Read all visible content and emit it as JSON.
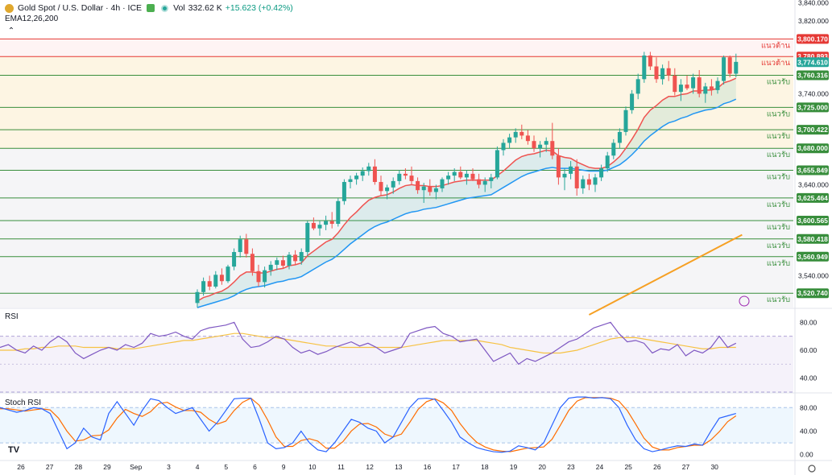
{
  "header": {
    "title": "Gold Spot / U.S. Dollar · 4h · ICE",
    "vol_label": "Vol",
    "vol_value": "332.62 K",
    "change": "+15.623 (+0.42%)",
    "ema_label": "EMA12,26,200",
    "collapse_icon": "chevron-up-icon"
  },
  "colors": {
    "up": "#26a69a",
    "down": "#ef5350",
    "ema12": "#ef5350",
    "ema26": "#2196f3",
    "ema200": "#f6a023",
    "resistance": "#e53935",
    "support": "#388e3c",
    "rsi": "#7e57c2",
    "rsi_ma": "#f6c243",
    "stoch_k": "#2962ff",
    "stoch_d": "#ff6d00"
  },
  "chart_data": [
    {
      "type": "candlestick",
      "pane": "price",
      "ylim": [
        3505,
        3843
      ],
      "y_ticks": [
        "3,840.000",
        "3,820.000",
        "3,740.000",
        "3,640.000",
        "3,540.000"
      ],
      "levels": [
        {
          "value": 3800.17,
          "label": "3,800.170",
          "text": "แนวต้าน",
          "kind": "resistance"
        },
        {
          "value": 3780.893,
          "label": "3,780.893",
          "text": "แนวต้าน",
          "kind": "resistance"
        },
        {
          "value": 3760.316,
          "label": "3,760.316",
          "text": "แนวรับ",
          "kind": "support"
        },
        {
          "value": 3725.0,
          "label": "3,725.000",
          "text": "แนวรับ",
          "kind": "support"
        },
        {
          "value": 3700.422,
          "label": "3,700.422",
          "text": "แนวรับ",
          "kind": "support"
        },
        {
          "value": 3680.0,
          "label": "3,680.000",
          "text": "แนวรับ",
          "kind": "support"
        },
        {
          "value": 3655.849,
          "label": "3,655.849",
          "text": "แนวรับ",
          "kind": "support"
        },
        {
          "value": 3625.464,
          "label": "3,625.464",
          "text": "แนวรับ",
          "kind": "support"
        },
        {
          "value": 3600.565,
          "label": "3,600.565",
          "text": "แนวรับ",
          "kind": "support"
        },
        {
          "value": 3580.418,
          "label": "3,580.418",
          "text": "แนวรับ",
          "kind": "support"
        },
        {
          "value": 3560.949,
          "label": "3,560.949",
          "text": "แนวรับ",
          "kind": "support"
        },
        {
          "value": 3520.74,
          "label": "3,520.740",
          "text": "แนวรับ",
          "kind": "support"
        }
      ],
      "last_price": {
        "value": 3774.61,
        "label": "3,774.610"
      },
      "ohlc": [
        [
          3510,
          3525,
          3505,
          3522
        ],
        [
          3522,
          3538,
          3518,
          3534
        ],
        [
          3534,
          3540,
          3524,
          3528
        ],
        [
          3528,
          3545,
          3526,
          3541
        ],
        [
          3541,
          3548,
          3530,
          3534
        ],
        [
          3534,
          3552,
          3532,
          3550
        ],
        [
          3550,
          3570,
          3546,
          3566
        ],
        [
          3566,
          3584,
          3560,
          3580
        ],
        [
          3580,
          3586,
          3560,
          3564
        ],
        [
          3564,
          3570,
          3540,
          3545
        ],
        [
          3545,
          3552,
          3528,
          3533
        ],
        [
          3533,
          3550,
          3527,
          3546
        ],
        [
          3546,
          3556,
          3540,
          3552
        ],
        [
          3552,
          3560,
          3546,
          3557
        ],
        [
          3557,
          3562,
          3548,
          3551
        ],
        [
          3551,
          3566,
          3547,
          3563
        ],
        [
          3563,
          3568,
          3552,
          3556
        ],
        [
          3556,
          3570,
          3552,
          3566
        ],
        [
          3566,
          3600,
          3562,
          3598
        ],
        [
          3598,
          3604,
          3590,
          3592
        ],
        [
          3592,
          3600,
          3584,
          3596
        ],
        [
          3596,
          3606,
          3590,
          3600
        ],
        [
          3600,
          3610,
          3592,
          3597
        ],
        [
          3597,
          3625,
          3594,
          3622
        ],
        [
          3622,
          3646,
          3618,
          3643
        ],
        [
          3643,
          3650,
          3636,
          3646
        ],
        [
          3646,
          3653,
          3640,
          3650
        ],
        [
          3650,
          3659,
          3644,
          3655
        ],
        [
          3655,
          3664,
          3650,
          3660
        ],
        [
          3660,
          3668,
          3640,
          3643
        ],
        [
          3643,
          3650,
          3628,
          3633
        ],
        [
          3633,
          3640,
          3624,
          3637
        ],
        [
          3637,
          3648,
          3630,
          3644
        ],
        [
          3644,
          3656,
          3640,
          3652
        ],
        [
          3652,
          3658,
          3646,
          3650
        ],
        [
          3650,
          3660,
          3640,
          3644
        ],
        [
          3644,
          3648,
          3630,
          3634
        ],
        [
          3634,
          3642,
          3620,
          3638
        ],
        [
          3638,
          3646,
          3628,
          3632
        ],
        [
          3632,
          3640,
          3624,
          3636
        ],
        [
          3636,
          3648,
          3632,
          3646
        ],
        [
          3646,
          3654,
          3640,
          3650
        ],
        [
          3650,
          3658,
          3644,
          3654
        ],
        [
          3654,
          3660,
          3646,
          3648
        ],
        [
          3648,
          3656,
          3640,
          3652
        ],
        [
          3652,
          3658,
          3644,
          3646
        ],
        [
          3646,
          3652,
          3636,
          3640
        ],
        [
          3640,
          3648,
          3632,
          3644
        ],
        [
          3644,
          3652,
          3636,
          3648
        ],
        [
          3648,
          3682,
          3646,
          3678
        ],
        [
          3678,
          3690,
          3672,
          3686
        ],
        [
          3686,
          3696,
          3680,
          3692
        ],
        [
          3692,
          3702,
          3686,
          3698
        ],
        [
          3698,
          3706,
          3690,
          3694
        ],
        [
          3694,
          3700,
          3684,
          3688
        ],
        [
          3688,
          3694,
          3676,
          3680
        ],
        [
          3680,
          3688,
          3670,
          3684
        ],
        [
          3684,
          3692,
          3676,
          3688
        ],
        [
          3688,
          3708,
          3668,
          3672
        ],
        [
          3672,
          3680,
          3640,
          3648
        ],
        [
          3648,
          3658,
          3634,
          3652
        ],
        [
          3652,
          3666,
          3646,
          3660
        ],
        [
          3660,
          3668,
          3628,
          3636
        ],
        [
          3636,
          3650,
          3630,
          3646
        ],
        [
          3646,
          3652,
          3634,
          3640
        ],
        [
          3640,
          3652,
          3632,
          3648
        ],
        [
          3648,
          3662,
          3644,
          3658
        ],
        [
          3658,
          3676,
          3654,
          3672
        ],
        [
          3672,
          3690,
          3668,
          3686
        ],
        [
          3686,
          3702,
          3680,
          3698
        ],
        [
          3698,
          3726,
          3694,
          3722
        ],
        [
          3722,
          3744,
          3718,
          3740
        ],
        [
          3740,
          3762,
          3734,
          3756
        ],
        [
          3756,
          3786,
          3752,
          3782
        ],
        [
          3782,
          3786,
          3766,
          3770
        ],
        [
          3770,
          3780,
          3752,
          3756
        ],
        [
          3756,
          3772,
          3750,
          3768
        ],
        [
          3768,
          3776,
          3754,
          3760
        ],
        [
          3760,
          3768,
          3738,
          3742
        ],
        [
          3742,
          3756,
          3732,
          3750
        ],
        [
          3750,
          3760,
          3744,
          3746
        ],
        [
          3746,
          3762,
          3740,
          3758
        ],
        [
          3758,
          3766,
          3736,
          3740
        ],
        [
          3740,
          3752,
          3730,
          3748
        ],
        [
          3748,
          3756,
          3738,
          3744
        ],
        [
          3744,
          3758,
          3740,
          3754
        ],
        [
          3754,
          3782,
          3750,
          3780
        ],
        [
          3780,
          3782,
          3758,
          3762
        ],
        [
          3762,
          3784,
          3758,
          3775
        ]
      ],
      "ema12": [
        3512,
        3516,
        3518,
        3521,
        3523,
        3527,
        3533,
        3540,
        3544,
        3544,
        3543,
        3543,
        3545,
        3547,
        3548,
        3551,
        3552,
        3554,
        3562,
        3567,
        3572,
        3577,
        3580,
        3587,
        3596,
        3604,
        3610,
        3617,
        3623,
        3626,
        3628,
        3629,
        3632,
        3636,
        3639,
        3640,
        3639,
        3639,
        3638,
        3638,
        3639,
        3641,
        3643,
        3644,
        3645,
        3645,
        3645,
        3645,
        3645,
        3650,
        3655,
        3661,
        3667,
        3671,
        3673,
        3674,
        3676,
        3678,
        3677,
        3672,
        3670,
        3669,
        3665,
        3662,
        3659,
        3658,
        3658,
        3660,
        3665,
        3671,
        3680,
        3690,
        3701,
        3714,
        3722,
        3727,
        3733,
        3737,
        3737,
        3739,
        3740,
        3743,
        3743,
        3744,
        3744,
        3746,
        3752,
        3754,
        3757
      ],
      "ema26": [
        3505,
        3507,
        3509,
        3511,
        3513,
        3515,
        3518,
        3522,
        3525,
        3527,
        3528,
        3529,
        3531,
        3533,
        3534,
        3536,
        3537,
        3539,
        3543,
        3547,
        3551,
        3555,
        3558,
        3563,
        3569,
        3575,
        3580,
        3585,
        3590,
        3594,
        3597,
        3599,
        3602,
        3605,
        3608,
        3610,
        3611,
        3613,
        3614,
        3615,
        3617,
        3619,
        3621,
        3623,
        3625,
        3626,
        3627,
        3628,
        3629,
        3633,
        3637,
        3641,
        3645,
        3649,
        3652,
        3654,
        3656,
        3658,
        3659,
        3658,
        3658,
        3658,
        3657,
        3656,
        3655,
        3655,
        3655,
        3656,
        3659,
        3662,
        3667,
        3673,
        3680,
        3688,
        3694,
        3699,
        3704,
        3708,
        3710,
        3713,
        3715,
        3718,
        3720,
        3722,
        3723,
        3725,
        3729,
        3731,
        3734
      ],
      "ema200_segment": [
        [
          64,
          3497
        ],
        [
          89,
          3585
        ]
      ]
    },
    {
      "type": "line",
      "pane": "rsi",
      "title": "RSI",
      "ylim": [
        30,
        90
      ],
      "y_ticks": [
        "80.00",
        "60.00",
        "40.00"
      ],
      "band": [
        30,
        70
      ],
      "rsi": [
        62,
        64,
        60,
        58,
        63,
        60,
        66,
        70,
        66,
        58,
        54,
        57,
        60,
        62,
        60,
        64,
        62,
        65,
        72,
        70,
        71,
        73,
        70,
        68,
        74,
        76,
        77,
        78,
        80,
        68,
        62,
        63,
        66,
        70,
        68,
        62,
        58,
        60,
        57,
        59,
        62,
        64,
        66,
        63,
        65,
        62,
        58,
        60,
        62,
        72,
        74,
        76,
        77,
        72,
        70,
        66,
        67,
        68,
        60,
        52,
        55,
        58,
        50,
        54,
        52,
        55,
        58,
        62,
        66,
        68,
        72,
        76,
        78,
        80,
        72,
        66,
        67,
        65,
        58,
        61,
        60,
        64,
        56,
        60,
        58,
        62,
        70,
        62,
        65
      ],
      "rsi_ma": [
        60,
        60,
        60,
        61,
        61,
        62,
        62,
        63,
        63,
        63,
        62,
        62,
        62,
        62,
        61,
        61,
        61,
        62,
        63,
        64,
        65,
        66,
        67,
        67,
        68,
        69,
        70,
        71,
        72,
        72,
        71,
        70,
        69,
        69,
        68,
        67,
        66,
        65,
        64,
        63,
        63,
        62,
        62,
        62,
        62,
        62,
        62,
        62,
        62,
        63,
        64,
        65,
        66,
        67,
        67,
        67,
        67,
        67,
        66,
        65,
        64,
        62,
        61,
        60,
        59,
        58,
        58,
        58,
        59,
        60,
        62,
        64,
        66,
        68,
        69,
        69,
        69,
        68,
        67,
        66,
        65,
        64,
        63,
        62,
        61,
        61,
        62,
        62,
        62
      ]
    },
    {
      "type": "line",
      "pane": "stoch",
      "title": "Stoch RSI",
      "ylim": [
        -10,
        105
      ],
      "y_ticks": [
        "80.00",
        "40.00",
        "0.00"
      ],
      "band": [
        20,
        80
      ],
      "k": [
        80,
        76,
        72,
        75,
        80,
        78,
        70,
        40,
        10,
        20,
        45,
        30,
        25,
        70,
        90,
        70,
        50,
        75,
        95,
        92,
        80,
        70,
        75,
        80,
        60,
        40,
        55,
        75,
        95,
        96,
        96,
        60,
        20,
        10,
        12,
        20,
        40,
        20,
        8,
        5,
        20,
        40,
        60,
        55,
        45,
        40,
        20,
        30,
        55,
        80,
        95,
        96,
        94,
        75,
        55,
        30,
        20,
        12,
        8,
        5,
        4,
        6,
        15,
        12,
        8,
        20,
        50,
        80,
        96,
        98,
        98,
        96,
        97,
        95,
        80,
        50,
        25,
        10,
        5,
        8,
        12,
        15,
        14,
        18,
        16,
        40,
        62,
        66,
        70
      ],
      "d": [
        78,
        78,
        76,
        74,
        76,
        78,
        76,
        62,
        40,
        23,
        25,
        32,
        33,
        42,
        62,
        77,
        70,
        65,
        73,
        87,
        89,
        81,
        75,
        75,
        72,
        60,
        52,
        57,
        75,
        89,
        96,
        84,
        59,
        30,
        14,
        14,
        24,
        27,
        23,
        11,
        11,
        22,
        40,
        52,
        53,
        47,
        35,
        30,
        35,
        55,
        77,
        90,
        95,
        88,
        75,
        53,
        35,
        21,
        13,
        8,
        6,
        5,
        8,
        11,
        12,
        13,
        26,
        50,
        75,
        91,
        97,
        97,
        97,
        96,
        91,
        75,
        52,
        28,
        13,
        8,
        8,
        12,
        14,
        16,
        16,
        25,
        39,
        56,
        66
      ]
    }
  ],
  "x_labels": [
    {
      "label": "26",
      "i": 0
    },
    {
      "label": "27",
      "i": 3.5
    },
    {
      "label": "28",
      "i": 7
    },
    {
      "label": "29",
      "i": 10.5
    },
    {
      "label": "Sep",
      "i": 14
    },
    {
      "label": "3",
      "i": 18
    },
    {
      "label": "4",
      "i": 21.5
    },
    {
      "label": "5",
      "i": 25
    },
    {
      "label": "6",
      "i": 28.5
    },
    {
      "label": "9",
      "i": 32
    },
    {
      "label": "10",
      "i": 35.5
    },
    {
      "label": "11",
      "i": 39
    },
    {
      "label": "12",
      "i": 42.5
    },
    {
      "label": "13",
      "i": 46
    },
    {
      "label": "16",
      "i": 49.5
    },
    {
      "label": "17",
      "i": 53
    },
    {
      "label": "18",
      "i": 56.5
    },
    {
      "label": "19",
      "i": 60
    },
    {
      "label": "20",
      "i": 63.5
    },
    {
      "label": "23",
      "i": 67
    },
    {
      "label": "24",
      "i": 70.5
    },
    {
      "label": "25",
      "i": 74
    },
    {
      "label": "26",
      "i": 77.5
    },
    {
      "label": "27",
      "i": 81
    },
    {
      "label": "30",
      "i": 84.5
    }
  ],
  "tv_logo": "TV",
  "settings_icon": "gear-icon"
}
